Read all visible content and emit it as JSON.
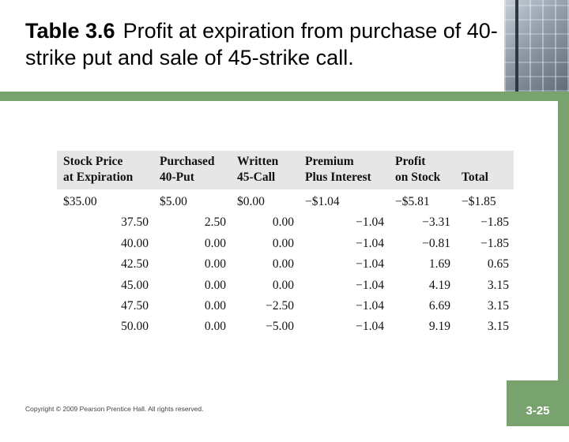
{
  "slide": {
    "title_number": "Table 3.6",
    "title_text": "Profit at expiration from purchase of 40-strike put and sale of 45-strike call.",
    "copyright": "Copyright © 2009 Pearson Prentice Hall. All rights reserved.",
    "slide_number": "3-25",
    "accent_color": "#79a36e"
  },
  "table": {
    "headers": [
      [
        "Stock Price",
        "at Expiration"
      ],
      [
        "Purchased",
        "40-Put"
      ],
      [
        "Written",
        "45-Call"
      ],
      [
        "Premium",
        "Plus Interest"
      ],
      [
        "Profit",
        "on Stock"
      ],
      [
        "",
        "Total"
      ]
    ],
    "rows": [
      [
        "$35.00",
        "$5.00",
        "$0.00",
        "−$1.04",
        "−$5.81",
        "−$1.85"
      ],
      [
        "37.50",
        "2.50",
        "0.00",
        "−1.04",
        "−3.31",
        "−1.85"
      ],
      [
        "40.00",
        "0.00",
        "0.00",
        "−1.04",
        "−0.81",
        "−1.85"
      ],
      [
        "42.50",
        "0.00",
        "0.00",
        "−1.04",
        "1.69",
        "0.65"
      ],
      [
        "45.00",
        "0.00",
        "0.00",
        "−1.04",
        "4.19",
        "3.15"
      ],
      [
        "47.50",
        "0.00",
        "−2.50",
        "−1.04",
        "6.69",
        "3.15"
      ],
      [
        "50.00",
        "0.00",
        "−5.00",
        "−1.04",
        "9.19",
        "3.15"
      ]
    ]
  }
}
